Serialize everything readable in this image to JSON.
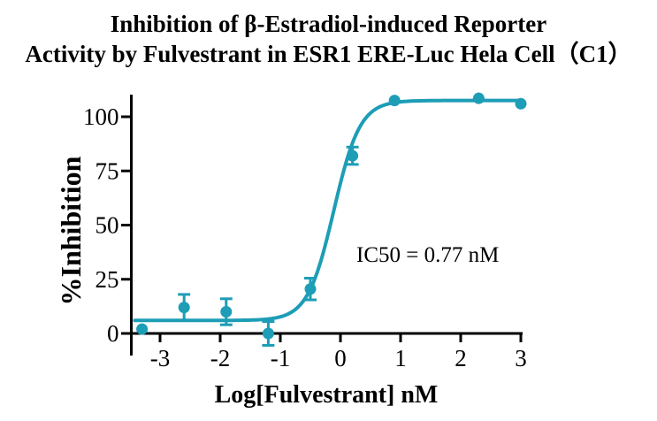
{
  "title": {
    "line1": "Inhibition of β-Estradiol-induced Reporter",
    "line2": "Activity by Fulvestrant in ESR1 ERE-Luc Hela Cell（C1）"
  },
  "chart_data": {
    "type": "scatter",
    "title": "Inhibition of β-Estradiol-induced Reporter Activity by Fulvestrant in ESR1 ERE-Luc Hela Cell（C1）",
    "xlabel": "Log[Fulvestrant] nM",
    "ylabel": "%Inhibition",
    "xlim": [
      -3.5,
      3.0
    ],
    "ylim": [
      -10,
      110
    ],
    "xticks": [
      -3,
      -2,
      -1,
      0,
      1,
      2,
      3
    ],
    "yticks": [
      0,
      25,
      50,
      75,
      100
    ],
    "grid": false,
    "legend": "none",
    "annotation": "IC50 = 0.77 nM",
    "series": [
      {
        "name": "Fulvestrant",
        "marker": "circle",
        "x": [
          -3.3,
          -2.6,
          -1.9,
          -1.2,
          -0.5,
          0.2,
          0.9,
          2.3,
          3.0
        ],
        "y": [
          2,
          12,
          10,
          0,
          20.5,
          82,
          107.5,
          108.5,
          106
        ],
        "yerr": [
          0,
          6,
          6,
          5.5,
          5,
          4,
          0,
          0,
          0
        ]
      }
    ],
    "fit_curve": {
      "model": "four-parameter-logistic",
      "bottom": 6,
      "top": 107.5,
      "logIC50": -0.11,
      "hillslope": 2.0,
      "ic50_nM": 0.77,
      "x_start": -3.42,
      "x_end": 2.98
    },
    "colors": {
      "series": "#1D9DB6",
      "axis": "#000000",
      "text": "#000000"
    }
  }
}
